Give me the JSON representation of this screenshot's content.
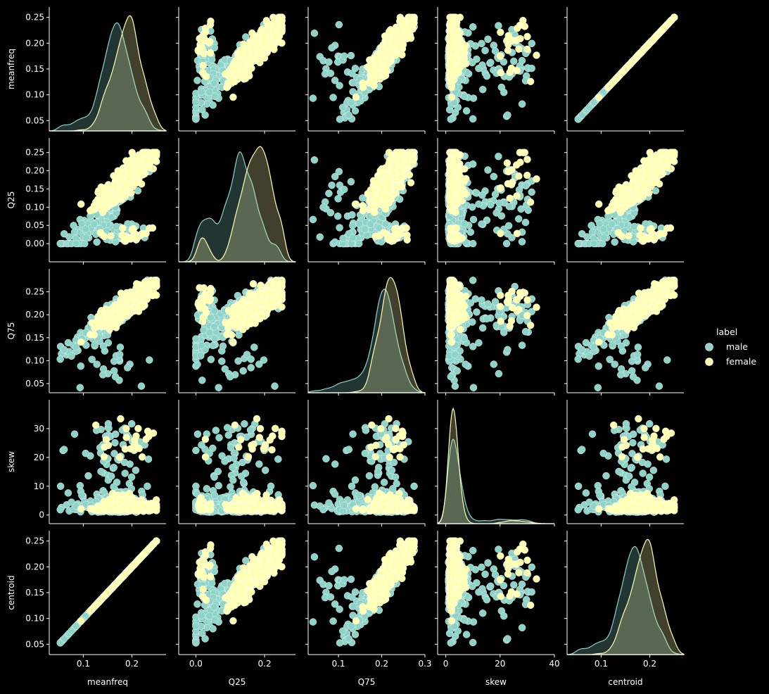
{
  "chart_data": {
    "type": "scatter",
    "subtype": "pairplot",
    "variables": [
      "meanfreq",
      "Q25",
      "Q75",
      "skew",
      "centroid"
    ],
    "axis_ranges": {
      "meanfreq": [
        0.03,
        0.27
      ],
      "Q25": [
        -0.05,
        0.29
      ],
      "Q75": [
        0.03,
        0.3
      ],
      "skew": [
        -3,
        40
      ],
      "centroid": [
        0.03,
        0.27
      ]
    },
    "y_ticks": {
      "meanfreq": [
        "0.05",
        "0.10",
        "0.15",
        "0.20",
        "0.25"
      ],
      "Q25": [
        "0.00",
        "0.05",
        "0.10",
        "0.15",
        "0.20",
        "0.25"
      ],
      "Q75": [
        "0.05",
        "0.10",
        "0.15",
        "0.20",
        "0.25"
      ],
      "skew": [
        "0",
        "10",
        "20",
        "30"
      ],
      "centroid": [
        "0.05",
        "0.10",
        "0.15",
        "0.20",
        "0.25"
      ]
    },
    "y_tick_values": {
      "meanfreq": [
        0.05,
        0.1,
        0.15,
        0.2,
        0.25
      ],
      "Q25": [
        0.0,
        0.05,
        0.1,
        0.15,
        0.2,
        0.25
      ],
      "Q75": [
        0.05,
        0.1,
        0.15,
        0.2,
        0.25
      ],
      "skew": [
        0,
        10,
        20,
        30
      ],
      "centroid": [
        0.05,
        0.1,
        0.15,
        0.2,
        0.25
      ]
    },
    "x_ticks": {
      "meanfreq": [
        "0.1",
        "0.2"
      ],
      "Q25": [
        "0.0",
        "0.2"
      ],
      "Q75": [
        "0.1",
        "0.2",
        "0.3"
      ],
      "skew": [
        "0",
        "20",
        "40"
      ],
      "centroid": [
        "0.1",
        "0.2"
      ]
    },
    "x_tick_values": {
      "meanfreq": [
        0.1,
        0.2
      ],
      "Q25": [
        0.0,
        0.2
      ],
      "Q75": [
        0.1,
        0.2,
        0.3
      ],
      "skew": [
        0,
        20,
        40
      ],
      "centroid": [
        0.1,
        0.2
      ]
    },
    "hue": {
      "title": "label",
      "levels": [
        {
          "name": "male",
          "color": "#8dd3c7"
        },
        {
          "name": "female",
          "color": "#ffffb3"
        }
      ]
    },
    "diagonal": "kde",
    "legend_placement": "right",
    "grid": false
  }
}
